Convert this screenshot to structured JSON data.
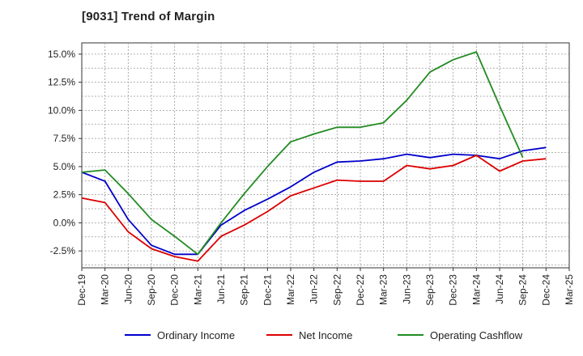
{
  "chart_title": "[9031]  Trend of Margin",
  "chart_data": {
    "type": "line",
    "title": "[9031]  Trend of Margin",
    "xlabel": "",
    "ylabel": "",
    "x": [
      "Dec-19",
      "Mar-20",
      "Jun-20",
      "Sep-20",
      "Dec-20",
      "Mar-21",
      "Jun-21",
      "Sep-21",
      "Dec-21",
      "Mar-22",
      "Jun-22",
      "Sep-22",
      "Dec-22",
      "Mar-23",
      "Jun-23",
      "Sep-23",
      "Dec-23",
      "Mar-24",
      "Jun-24",
      "Sep-24",
      "Dec-24",
      "Mar-25"
    ],
    "ylim": [
      -4.0,
      16.0
    ],
    "yticks": [
      -2.5,
      0.0,
      2.5,
      5.0,
      7.5,
      10.0,
      12.5,
      15.0
    ],
    "ytick_labels": [
      "-2.5%",
      "0.0%",
      "2.5%",
      "5.0%",
      "7.5%",
      "10.0%",
      "12.5%",
      "15.0%"
    ],
    "grid": true,
    "legend_position": "bottom",
    "series": [
      {
        "name": "Ordinary Income",
        "color": "#0000cc",
        "values": [
          4.5,
          3.7,
          0.3,
          -2.0,
          -2.8,
          -2.8,
          -0.2,
          1.1,
          2.1,
          3.2,
          4.5,
          5.4,
          5.5,
          5.7,
          6.1,
          5.8,
          6.1,
          6.0,
          5.7,
          6.4,
          6.7,
          null
        ]
      },
      {
        "name": "Net Income",
        "color": "#dd0000",
        "values": [
          2.2,
          1.8,
          -0.8,
          -2.3,
          -3.0,
          -3.4,
          -1.2,
          -0.2,
          1.0,
          2.4,
          3.1,
          3.8,
          3.7,
          3.7,
          5.1,
          4.8,
          5.1,
          6.0,
          4.6,
          5.5,
          5.7,
          null
        ]
      },
      {
        "name": "Operating Cashflow",
        "color": "#228b22",
        "values": [
          4.5,
          4.7,
          2.6,
          0.3,
          -1.2,
          -2.8,
          0.0,
          2.6,
          5.0,
          7.2,
          7.9,
          8.5,
          8.5,
          8.9,
          10.9,
          13.4,
          14.5,
          15.2,
          10.4,
          5.8,
          null,
          null
        ]
      }
    ]
  }
}
